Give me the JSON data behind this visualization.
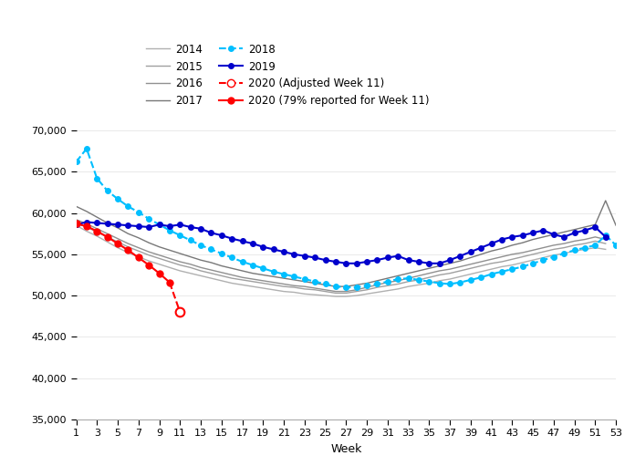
{
  "title": "",
  "xlabel": "Week",
  "ylabel": "",
  "ylim": [
    35000,
    70000
  ],
  "yticks": [
    35000,
    40000,
    45000,
    50000,
    55000,
    60000,
    65000,
    70000
  ],
  "xticks": [
    1,
    3,
    5,
    7,
    9,
    11,
    13,
    15,
    17,
    19,
    21,
    23,
    25,
    27,
    29,
    31,
    33,
    35,
    37,
    39,
    41,
    43,
    45,
    47,
    49,
    51,
    53
  ],
  "weeks": [
    1,
    2,
    3,
    4,
    5,
    6,
    7,
    8,
    9,
    10,
    11,
    12,
    13,
    14,
    15,
    16,
    17,
    18,
    19,
    20,
    21,
    22,
    23,
    24,
    25,
    26,
    27,
    28,
    29,
    30,
    31,
    32,
    33,
    34,
    35,
    36,
    37,
    38,
    39,
    40,
    41,
    42,
    43,
    44,
    45,
    46,
    47,
    48,
    49,
    50,
    51,
    52,
    53
  ],
  "data_2014": [
    58500,
    57800,
    57200,
    56500,
    55800,
    55200,
    54700,
    54200,
    53800,
    53400,
    53000,
    52700,
    52400,
    52100,
    51800,
    51500,
    51300,
    51100,
    50900,
    50700,
    50500,
    50400,
    50200,
    50100,
    50000,
    49900,
    49900,
    50000,
    50200,
    50400,
    50600,
    50800,
    51100,
    51300,
    51500,
    51800,
    52000,
    52300,
    52600,
    52900,
    53200,
    53500,
    53700,
    54000,
    54300,
    54600,
    54900,
    55100,
    55400,
    55600,
    55800,
    55600,
    null
  ],
  "data_2015": [
    58800,
    58300,
    57700,
    57100,
    56500,
    55900,
    55400,
    54900,
    54500,
    54100,
    53700,
    53400,
    53000,
    52700,
    52400,
    52100,
    51900,
    51700,
    51500,
    51300,
    51100,
    51000,
    50800,
    50700,
    50500,
    50300,
    50300,
    50500,
    50700,
    51000,
    51200,
    51400,
    51700,
    51900,
    52200,
    52500,
    52700,
    53000,
    53300,
    53600,
    53900,
    54100,
    54400,
    54700,
    55000,
    55300,
    55600,
    55800,
    56100,
    56300,
    56600,
    56300,
    null
  ],
  "data_2016": [
    59200,
    58700,
    58100,
    57500,
    56900,
    56300,
    55800,
    55300,
    54900,
    54500,
    54100,
    53800,
    53400,
    53100,
    52800,
    52500,
    52200,
    52000,
    51800,
    51600,
    51400,
    51200,
    51100,
    50900,
    50700,
    50500,
    50500,
    50700,
    51000,
    51300,
    51600,
    51800,
    52100,
    52400,
    52700,
    53000,
    53200,
    53500,
    53800,
    54100,
    54400,
    54700,
    55000,
    55200,
    55500,
    55800,
    56100,
    56300,
    56600,
    56800,
    57100,
    56800,
    null
  ],
  "data_2017": [
    60800,
    60200,
    59500,
    58800,
    58200,
    57500,
    57000,
    56400,
    55900,
    55500,
    55100,
    54700,
    54300,
    54000,
    53600,
    53300,
    53000,
    52700,
    52500,
    52300,
    52100,
    51900,
    51700,
    51500,
    51300,
    51100,
    51100,
    51300,
    51500,
    51800,
    52100,
    52400,
    52700,
    53000,
    53300,
    53600,
    53900,
    54200,
    54600,
    55000,
    55400,
    55700,
    56100,
    56400,
    56800,
    57100,
    57400,
    57700,
    58000,
    58300,
    58600,
    61500,
    58500
  ],
  "data_2018": [
    66200,
    67800,
    64200,
    62700,
    61700,
    60800,
    60100,
    59300,
    58600,
    57900,
    57300,
    56700,
    56100,
    55600,
    55100,
    54600,
    54100,
    53700,
    53300,
    52900,
    52600,
    52300,
    52000,
    51700,
    51400,
    51100,
    51000,
    51000,
    51200,
    51400,
    51700,
    52000,
    52100,
    51900,
    51700,
    51500,
    51400,
    51600,
    51900,
    52200,
    52600,
    52900,
    53200,
    53500,
    53900,
    54300,
    54700,
    55100,
    55500,
    55800,
    56100,
    57300,
    56100
  ],
  "data_2019": [
    58600,
    58900,
    58800,
    58700,
    58600,
    58500,
    58400,
    58300,
    58600,
    58400,
    58600,
    58300,
    58100,
    57600,
    57300,
    56900,
    56600,
    56300,
    55900,
    55600,
    55300,
    55000,
    54800,
    54600,
    54300,
    54100,
    53900,
    53900,
    54100,
    54300,
    54600,
    54800,
    54300,
    54100,
    53900,
    53900,
    54300,
    54800,
    55300,
    55800,
    56300,
    56800,
    57100,
    57300,
    57600,
    57900,
    57400,
    57100,
    57600,
    57900,
    58300,
    57100,
    null
  ],
  "data_2020_reported": [
    58700,
    58400,
    57800,
    57100,
    56300,
    55500,
    54600,
    53700,
    52700,
    51600,
    null,
    null,
    null,
    null,
    null,
    null,
    null,
    null,
    null,
    null,
    null,
    null,
    null,
    null,
    null,
    null,
    null,
    null,
    null,
    null,
    null,
    null,
    null,
    null,
    null,
    null,
    null,
    null,
    null,
    null,
    null,
    null,
    null,
    null,
    null,
    null,
    null,
    null,
    null,
    null,
    null,
    null,
    null
  ],
  "data_2020_adjusted_line": [
    51600,
    48000
  ],
  "data_2020_adjusted_weeks": [
    10,
    11
  ],
  "data_2020_adjusted_point": 48000,
  "data_2020_adjusted_week": 11,
  "color_2014": "#b0b0b0",
  "color_2015": "#a0a0a0",
  "color_2016": "#909090",
  "color_2017": "#787878",
  "color_2018": "#00bfff",
  "color_2019": "#0000cc",
  "color_2020_reported": "#ff0000",
  "color_2020_adjusted": "#ff0000",
  "lw_gray": 1.0,
  "lw_colored": 1.5,
  "legend_labels": [
    "2014",
    "2015",
    "2016",
    "2017",
    "2018",
    "2019",
    "2020 (Adjusted Week 11)",
    "2020 (79% reported for Week 11)"
  ]
}
